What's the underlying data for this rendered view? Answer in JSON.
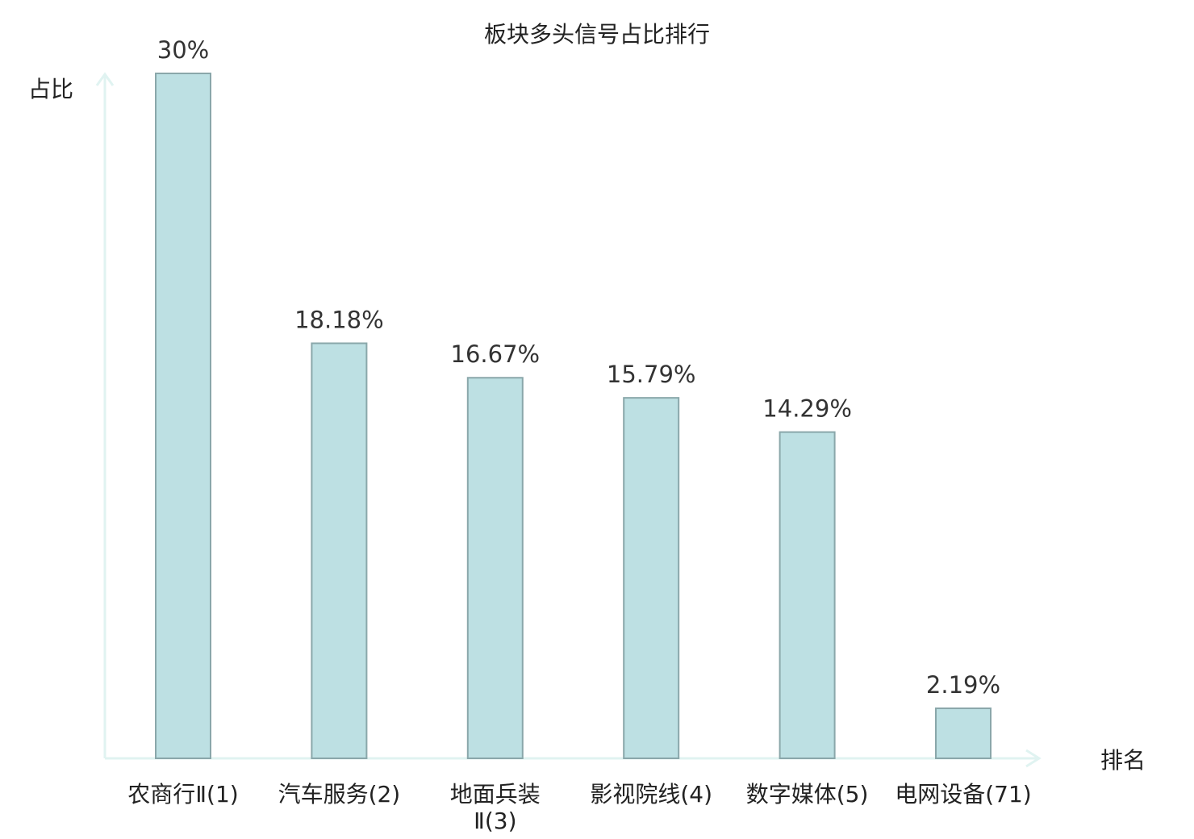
{
  "chart_data": {
    "type": "bar",
    "title": "板块多头信号占比排行",
    "ylabel": "占比",
    "xlabel": "排名",
    "categories": [
      [
        "农商行Ⅱ(1)"
      ],
      [
        "汽车服务(2)"
      ],
      [
        "地面兵装",
        "Ⅱ(3)"
      ],
      [
        "影视院线(4)"
      ],
      [
        "数字媒体(5)"
      ],
      [
        "电网设备(71)"
      ]
    ],
    "values": [
      30,
      18.18,
      16.67,
      15.79,
      14.29,
      2.19
    ],
    "value_labels": [
      "30%",
      "18.18%",
      "16.67%",
      "15.79%",
      "14.29%",
      "2.19%"
    ],
    "ylim": [
      0,
      30
    ],
    "grid": false,
    "colors": {
      "bar_fill": "#bde0e3",
      "bar_stroke": "#8aa7aa",
      "axis": "#e0f3f1",
      "highlight_label": "#e0201b",
      "text": "#222222"
    },
    "highlight_index": 5
  }
}
